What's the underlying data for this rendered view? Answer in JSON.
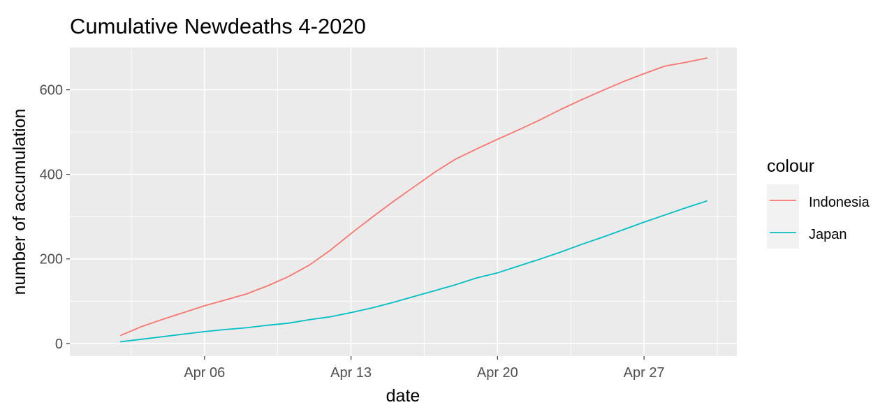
{
  "chart_data": {
    "type": "line",
    "title": "Cumulative Newdeaths 4-2020",
    "xlabel": "date",
    "ylabel": "number of accumulation",
    "x_range": [
      "2020-04-01",
      "2020-04-30"
    ],
    "ylim": [
      -30,
      700
    ],
    "grid": true,
    "x": [
      "2020-04-02",
      "2020-04-03",
      "2020-04-04",
      "2020-04-05",
      "2020-04-06",
      "2020-04-07",
      "2020-04-08",
      "2020-04-09",
      "2020-04-10",
      "2020-04-11",
      "2020-04-12",
      "2020-04-13",
      "2020-04-14",
      "2020-04-15",
      "2020-04-16",
      "2020-04-17",
      "2020-04-18",
      "2020-04-19",
      "2020-04-20",
      "2020-04-21",
      "2020-04-22",
      "2020-04-23",
      "2020-04-24",
      "2020-04-25",
      "2020-04-26",
      "2020-04-27",
      "2020-04-28",
      "2020-04-29",
      "2020-04-30"
    ],
    "x_ticks": [
      {
        "date": "2020-04-06",
        "label": "Apr 06"
      },
      {
        "date": "2020-04-13",
        "label": "Apr 13"
      },
      {
        "date": "2020-04-20",
        "label": "Apr 20"
      },
      {
        "date": "2020-04-27",
        "label": "Apr 27"
      }
    ],
    "y_ticks": [
      0,
      200,
      400,
      600
    ],
    "legend": {
      "title": "colour",
      "position": "right"
    },
    "series": [
      {
        "name": "Indonesia",
        "color": "#F8766D",
        "values": [
          19,
          40,
          57,
          73,
          89,
          103,
          117,
          136,
          158,
          185,
          220,
          260,
          298,
          335,
          370,
          405,
          436,
          460,
          483,
          505,
          528,
          553,
          576,
          598,
          619,
          638,
          656,
          665,
          675
        ]
      },
      {
        "name": "Japan",
        "color": "#00BFC4",
        "values": [
          4,
          10,
          16,
          22,
          28,
          33,
          37,
          43,
          48,
          56,
          63,
          73,
          84,
          97,
          111,
          125,
          139,
          155,
          167,
          183,
          199,
          216,
          234,
          251,
          269,
          287,
          304,
          321,
          337
        ]
      }
    ]
  }
}
